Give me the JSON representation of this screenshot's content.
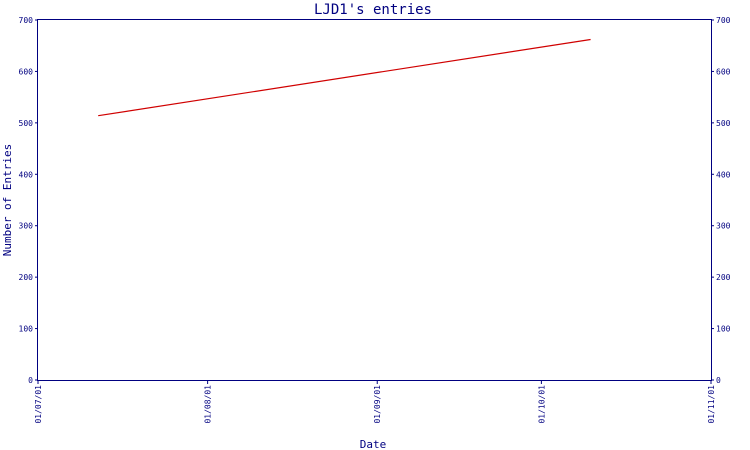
{
  "chart_data": {
    "type": "line",
    "title": "LJD1's entries",
    "xlabel": "Date",
    "ylabel": "Number of Entries",
    "x_ticks": [
      "01/07/01",
      "01/08/01",
      "01/09/01",
      "01/10/01",
      "01/11/01"
    ],
    "y_ticks": [
      0,
      100,
      200,
      300,
      400,
      500,
      600,
      700
    ],
    "ylim": [
      0,
      700
    ],
    "xlim": [
      "01/07/01",
      "01/11/01"
    ],
    "grid": false,
    "series": [
      {
        "color": "#d00000",
        "points": [
          {
            "x": "12/07/01",
            "y": 514
          },
          {
            "x": "10/10/01",
            "y": 662
          }
        ]
      }
    ]
  },
  "colors": {
    "axis": "#000080",
    "series": "#d00000"
  }
}
